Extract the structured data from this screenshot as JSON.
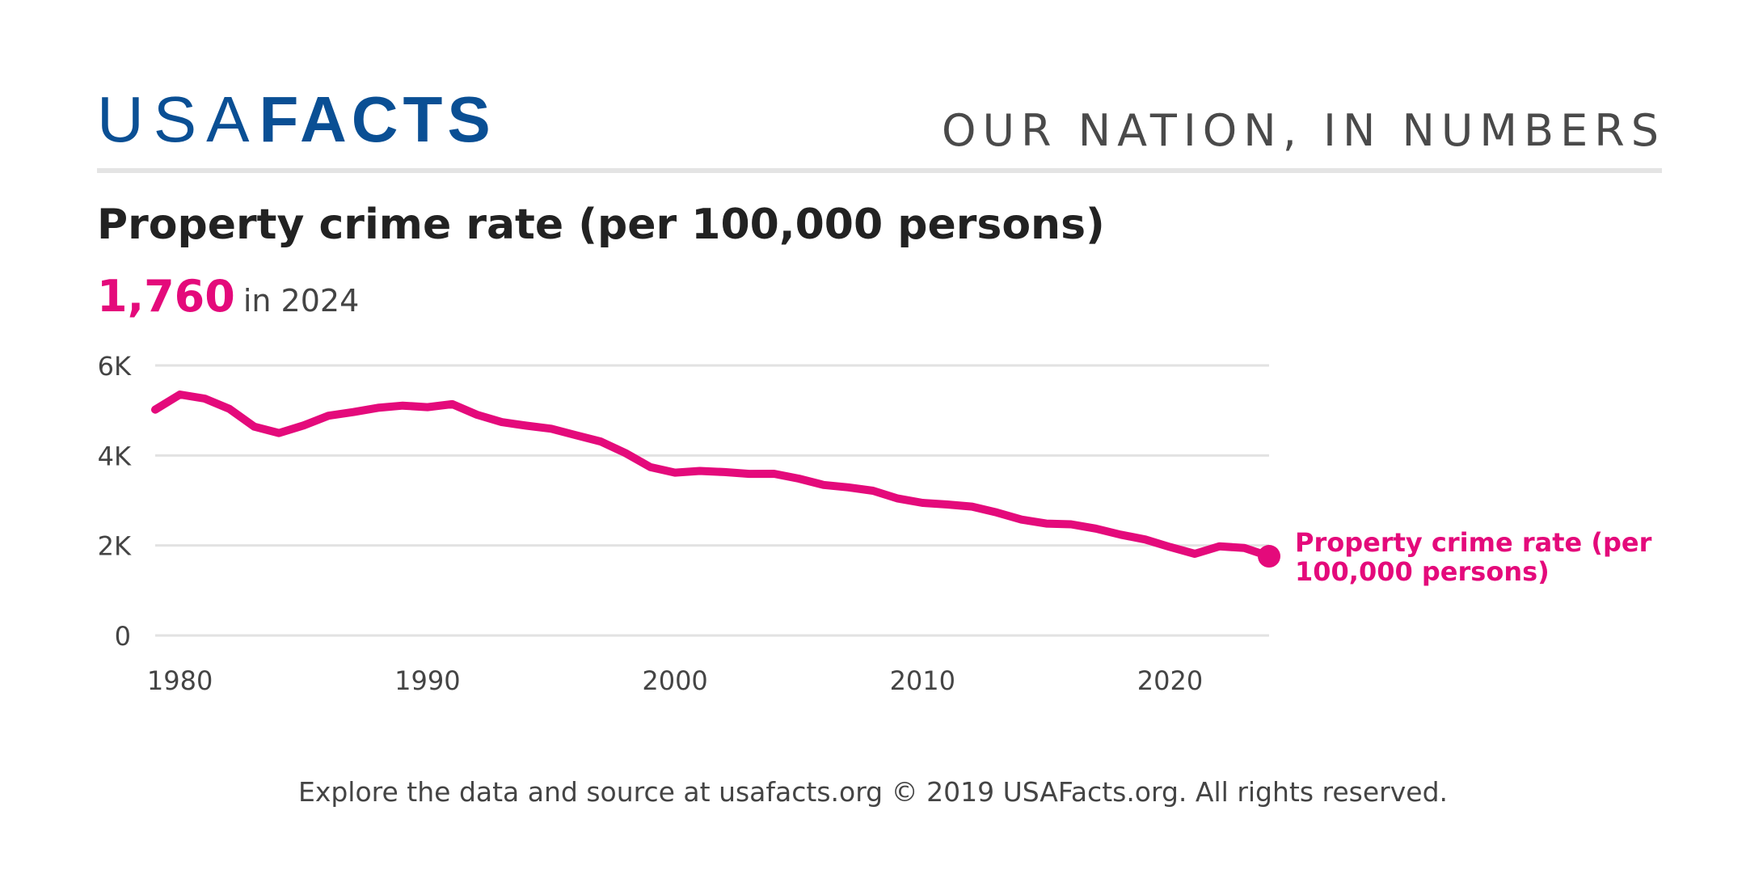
{
  "header": {
    "logo_thin": "USA",
    "logo_bold": "FACTS",
    "tagline": "OUR NATION, IN NUMBERS"
  },
  "headline": {
    "value": "1,760",
    "suffix": "in 2024"
  },
  "footer": {
    "text": "Explore the data and source at usafacts.org © 2019 USAFacts.org. All rights reserved."
  },
  "colors": {
    "line": "#e40a7b",
    "logo": "#0a4f94",
    "grid": "#e2e2e2"
  },
  "chart_data": {
    "type": "line",
    "title": "Property crime rate (per 100,000 persons)",
    "xlabel": "",
    "ylabel": "",
    "xlim": [
      1979,
      2024
    ],
    "ylim": [
      0,
      6000
    ],
    "x_ticks": [
      1980,
      1990,
      2000,
      2010,
      2020
    ],
    "y_ticks": [
      {
        "value": 0,
        "label": "0"
      },
      {
        "value": 2000,
        "label": "2K"
      },
      {
        "value": 4000,
        "label": "4K"
      },
      {
        "value": 6000,
        "label": "6K"
      }
    ],
    "grid": true,
    "series": [
      {
        "name": "Property crime rate (per 100,000 persons)",
        "x": [
          1979,
          1980,
          1981,
          1982,
          1983,
          1984,
          1985,
          1986,
          1987,
          1988,
          1989,
          1990,
          1991,
          1992,
          1993,
          1994,
          1995,
          1996,
          1997,
          1998,
          1999,
          2000,
          2001,
          2002,
          2003,
          2004,
          2005,
          2006,
          2007,
          2008,
          2009,
          2010,
          2011,
          2012,
          2013,
          2014,
          2015,
          2016,
          2017,
          2018,
          2019,
          2020,
          2021,
          2022,
          2023,
          2024
        ],
        "values": [
          5017,
          5354,
          5264,
          5033,
          4641,
          4499,
          4667,
          4882,
          4964,
          5059,
          5107,
          5073,
          5140,
          4904,
          4741,
          4661,
          4594,
          4449,
          4309,
          4053,
          3742,
          3618,
          3656,
          3630,
          3591,
          3593,
          3485,
          3345,
          3291,
          3215,
          3044,
          2946,
          2910,
          2864,
          2733,
          2575,
          2487,
          2470,
          2375,
          2240,
          2133,
          1966,
          1815,
          1982,
          1944,
          1760
        ]
      }
    ]
  }
}
